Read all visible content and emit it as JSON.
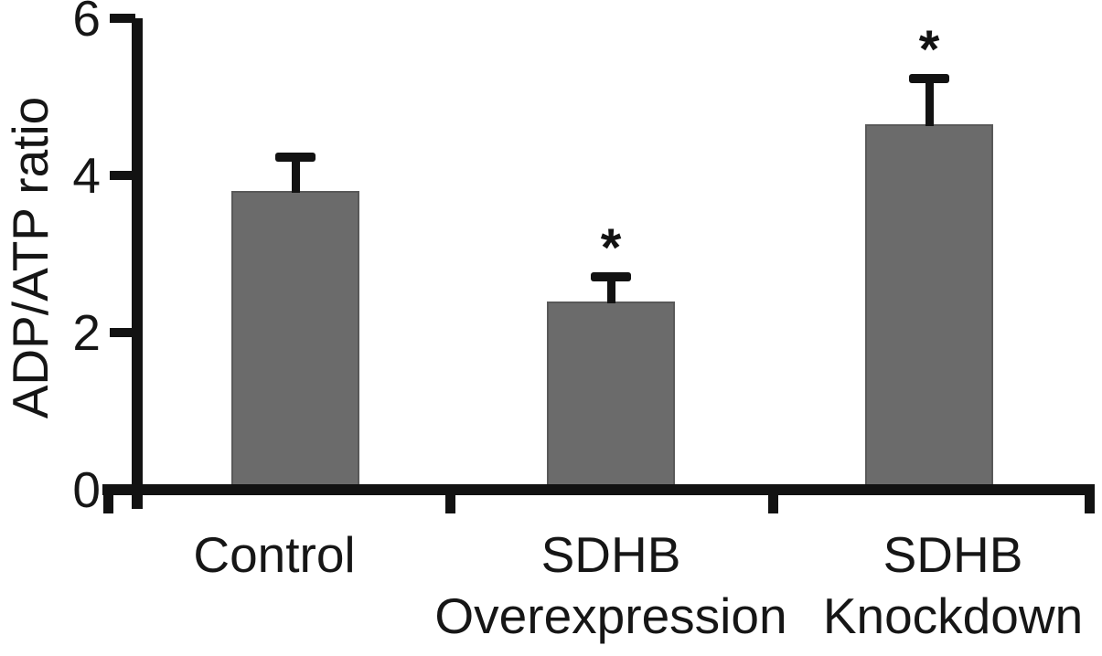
{
  "chart_data": {
    "type": "bar",
    "title": "",
    "ylabel": "ADP/ATP ratio",
    "xlabel": "",
    "categories": [
      "Control",
      "SDHB Overexpression",
      "SDHB Knockdown"
    ],
    "values": [
      3.8,
      2.4,
      4.65
    ],
    "errors_upper": [
      0.4,
      0.27,
      0.55
    ],
    "significance_markers": [
      "",
      "*",
      "*"
    ],
    "ylim": [
      0,
      6
    ],
    "yticks": [
      0,
      2,
      4,
      6
    ],
    "grid": false,
    "legend_position": "none",
    "bar_color": "#6b6b6b",
    "bar_border_color": "#595959",
    "axis_color": "#121212",
    "text_color": "#161616"
  }
}
